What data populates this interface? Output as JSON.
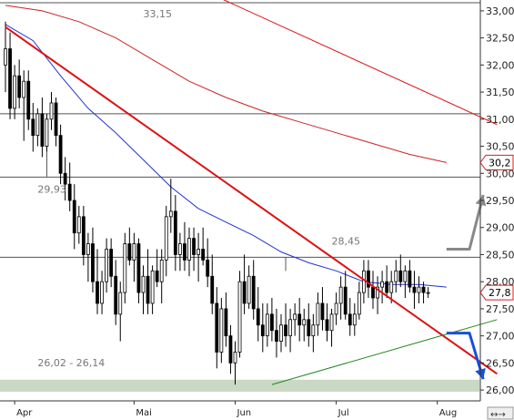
{
  "colors": {
    "background": "#ffffff",
    "candle": "#000000",
    "level_line": "#555555",
    "trendline": "#dd1111",
    "support_line": "#228822",
    "blue_ma": "#2233cc",
    "red_ma": "#cc2222",
    "support_zone": "#c9d9c4",
    "gray_arrow": "#888888",
    "blue_arrow": "#1a4fd8",
    "price_tag": "#cc2222"
  },
  "icons": {
    "gray_arrow": "up-arrow-icon",
    "blue_arrow": "down-arrow-icon",
    "scroll_buttons": "scroll-arrows-icon"
  },
  "chart_data": {
    "type": "candlestick",
    "title": "",
    "xlabel": "",
    "ylabel": "",
    "ylim": [
      25.8,
      33.2
    ],
    "y_ticks": [
      "33,00",
      "32,50",
      "32,00",
      "31,50",
      "31,00",
      "30,50",
      "30,00",
      "29,50",
      "29,00",
      "28,50",
      "28,00",
      "27,50",
      "27,00",
      "26,50",
      "26,00"
    ],
    "y_tick_values": [
      33.0,
      32.5,
      32.0,
      31.5,
      31.0,
      30.5,
      30.0,
      29.5,
      29.0,
      28.5,
      28.0,
      27.5,
      27.0,
      26.5,
      26.0
    ],
    "months": [
      {
        "label": "Apr",
        "index": 2
      },
      {
        "label": "Mai",
        "index": 28
      },
      {
        "label": "Jun",
        "index": 50
      },
      {
        "label": "Jul",
        "index": 72
      },
      {
        "label": "Aug",
        "index": 94
      }
    ],
    "horizontal_levels": [
      {
        "label": "33,15",
        "value": 33.15
      },
      {
        "label": "",
        "value": 31.1
      },
      {
        "label": "29,93",
        "value": 29.93
      },
      {
        "label": "28,45",
        "value": 28.45
      }
    ],
    "support_zone": {
      "label": "26,02 - 26,14",
      "from": 26.02,
      "to": 26.14
    },
    "last_price_tags": [
      "30,2",
      "27,8"
    ],
    "last_price_values": [
      30.2,
      27.8
    ],
    "trendlines": [
      {
        "name": "downtrend",
        "points": [
          [
            0,
            32.7
          ],
          [
            107,
            26.3
          ]
        ]
      },
      {
        "name": "uptrend",
        "points": [
          [
            58,
            26.1
          ],
          [
            107,
            27.3
          ]
        ]
      },
      {
        "name": "upper-red",
        "points": [
          [
            45,
            33.3
          ],
          [
            107,
            30.9
          ]
        ]
      }
    ],
    "moving_averages": [
      {
        "name": "blue",
        "points": [
          [
            0,
            32.75
          ],
          [
            6,
            32.45
          ],
          [
            12,
            31.8
          ],
          [
            18,
            31.2
          ],
          [
            24,
            30.75
          ],
          [
            30,
            30.25
          ],
          [
            36,
            29.75
          ],
          [
            42,
            29.35
          ],
          [
            48,
            29.1
          ],
          [
            54,
            28.85
          ],
          [
            60,
            28.55
          ],
          [
            66,
            28.35
          ],
          [
            72,
            28.2
          ],
          [
            78,
            28.0
          ],
          [
            84,
            27.95
          ],
          [
            90,
            27.95
          ],
          [
            96,
            27.9
          ]
        ]
      },
      {
        "name": "red",
        "points": [
          [
            0,
            33.1
          ],
          [
            8,
            33.0
          ],
          [
            16,
            32.8
          ],
          [
            24,
            32.5
          ],
          [
            32,
            32.1
          ],
          [
            40,
            31.7
          ],
          [
            48,
            31.4
          ],
          [
            56,
            31.15
          ],
          [
            64,
            30.95
          ],
          [
            72,
            30.75
          ],
          [
            80,
            30.55
          ],
          [
            88,
            30.35
          ],
          [
            96,
            30.2
          ]
        ]
      }
    ],
    "arrows": [
      {
        "name": "gray-arrow",
        "points": [
          [
            96,
            28.6
          ],
          [
            101,
            28.6
          ],
          [
            104,
            29.6
          ]
        ]
      },
      {
        "name": "blue-arrow",
        "points": [
          [
            96,
            27.05
          ],
          [
            101,
            27.05
          ],
          [
            104,
            26.2
          ]
        ]
      }
    ],
    "candles": [
      [
        32.0,
        32.8,
        31.5,
        32.3
      ],
      [
        32.3,
        32.6,
        31.0,
        31.2
      ],
      [
        31.2,
        32.0,
        31.0,
        31.8
      ],
      [
        31.8,
        32.1,
        31.2,
        31.4
      ],
      [
        31.4,
        31.9,
        30.6,
        31.7
      ],
      [
        31.7,
        31.9,
        30.8,
        31.0
      ],
      [
        31.0,
        31.3,
        30.4,
        30.7
      ],
      [
        30.7,
        31.2,
        30.5,
        31.1
      ],
      [
        31.1,
        31.4,
        30.3,
        30.5
      ],
      [
        30.5,
        31.1,
        30.4,
        31.0
      ],
      [
        31.0,
        31.5,
        30.8,
        31.3
      ],
      [
        31.3,
        31.4,
        30.5,
        30.7
      ],
      [
        30.7,
        30.9,
        29.8,
        30.0
      ],
      [
        30.0,
        30.3,
        29.5,
        29.8
      ],
      [
        29.8,
        30.2,
        29.3,
        29.5
      ],
      [
        29.5,
        29.8,
        28.6,
        28.9
      ],
      [
        28.9,
        29.4,
        28.7,
        29.2
      ],
      [
        29.2,
        29.4,
        28.3,
        28.5
      ],
      [
        28.5,
        28.9,
        28.0,
        28.7
      ],
      [
        28.7,
        29.0,
        27.8,
        28.0
      ],
      [
        28.0,
        28.6,
        27.4,
        27.6
      ],
      [
        27.6,
        28.2,
        27.4,
        28.0
      ],
      [
        28.0,
        28.8,
        27.8,
        28.6
      ],
      [
        28.6,
        28.8,
        27.9,
        28.1
      ],
      [
        28.1,
        28.4,
        27.2,
        27.4
      ],
      [
        27.4,
        28.0,
        26.9,
        27.8
      ],
      [
        27.8,
        28.9,
        27.6,
        28.7
      ],
      [
        28.7,
        29.0,
        28.3,
        28.4
      ],
      [
        28.4,
        28.9,
        28.0,
        28.7
      ],
      [
        28.7,
        28.8,
        27.6,
        27.8
      ],
      [
        27.8,
        28.3,
        27.4,
        28.1
      ],
      [
        28.1,
        28.6,
        27.4,
        27.6
      ],
      [
        27.6,
        28.3,
        27.4,
        28.2
      ],
      [
        28.2,
        28.6,
        27.9,
        28.0
      ],
      [
        28.0,
        28.6,
        27.6,
        28.4
      ],
      [
        28.4,
        29.4,
        28.1,
        29.2
      ],
      [
        29.2,
        29.9,
        28.9,
        29.3
      ],
      [
        29.3,
        29.6,
        28.2,
        28.5
      ],
      [
        28.5,
        28.9,
        28.2,
        28.7
      ],
      [
        28.7,
        29.1,
        28.2,
        28.4
      ],
      [
        28.4,
        29.0,
        28.1,
        28.8
      ],
      [
        28.8,
        29.0,
        28.2,
        28.5
      ],
      [
        28.5,
        28.9,
        28.0,
        28.6
      ],
      [
        28.6,
        29.0,
        28.3,
        28.4
      ],
      [
        28.4,
        28.8,
        27.9,
        28.1
      ],
      [
        28.1,
        28.5,
        27.4,
        27.6
      ],
      [
        27.6,
        27.9,
        26.4,
        26.7
      ],
      [
        26.7,
        27.7,
        26.5,
        27.5
      ],
      [
        27.5,
        27.8,
        26.8,
        27.0
      ],
      [
        27.0,
        27.2,
        26.3,
        26.5
      ],
      [
        26.5,
        26.9,
        26.1,
        26.7
      ],
      [
        26.7,
        28.2,
        26.6,
        28.0
      ],
      [
        28.0,
        28.5,
        27.4,
        27.6
      ],
      [
        27.6,
        28.3,
        27.5,
        28.1
      ],
      [
        28.1,
        28.4,
        27.3,
        27.5
      ],
      [
        27.5,
        27.9,
        26.9,
        27.2
      ],
      [
        27.2,
        27.6,
        26.7,
        27.0
      ],
      [
        27.0,
        27.6,
        26.8,
        27.4
      ],
      [
        27.4,
        27.7,
        26.9,
        27.1
      ],
      [
        27.1,
        27.5,
        26.6,
        26.9
      ],
      [
        26.9,
        27.4,
        26.7,
        27.2
      ],
      [
        27.2,
        27.6,
        26.8,
        27.0
      ],
      [
        27.0,
        27.5,
        26.7,
        27.3
      ],
      [
        27.3,
        27.6,
        27.0,
        27.4
      ],
      [
        27.4,
        27.7,
        26.9,
        27.2
      ],
      [
        27.2,
        27.5,
        26.9,
        27.3
      ],
      [
        27.3,
        27.6,
        26.8,
        27.0
      ],
      [
        27.0,
        27.4,
        26.7,
        27.2
      ],
      [
        27.2,
        27.8,
        27.0,
        27.6
      ],
      [
        27.6,
        27.9,
        27.1,
        27.3
      ],
      [
        27.3,
        27.6,
        26.9,
        27.1
      ],
      [
        27.1,
        27.5,
        26.8,
        27.4
      ],
      [
        27.4,
        27.8,
        27.2,
        27.6
      ],
      [
        27.6,
        28.1,
        27.3,
        27.9
      ],
      [
        27.9,
        28.2,
        27.3,
        27.4
      ],
      [
        27.4,
        27.7,
        27.0,
        27.2
      ],
      [
        27.2,
        27.6,
        27.0,
        27.4
      ],
      [
        27.4,
        28.0,
        27.3,
        27.8
      ],
      [
        27.8,
        28.4,
        27.6,
        28.2
      ],
      [
        28.2,
        28.4,
        27.7,
        27.9
      ],
      [
        27.9,
        28.2,
        27.5,
        27.7
      ],
      [
        27.7,
        28.1,
        27.4,
        27.9
      ],
      [
        27.9,
        28.2,
        27.6,
        28.0
      ],
      [
        28.0,
        28.3,
        27.7,
        27.8
      ],
      [
        27.8,
        28.2,
        27.6,
        28.0
      ],
      [
        28.0,
        28.4,
        27.8,
        28.2
      ],
      [
        28.2,
        28.5,
        27.9,
        28.0
      ],
      [
        28.0,
        28.3,
        27.7,
        28.2
      ],
      [
        28.2,
        28.4,
        27.8,
        27.9
      ],
      [
        27.9,
        28.2,
        27.5,
        27.8
      ],
      [
        27.8,
        28.1,
        27.6,
        27.9
      ],
      [
        27.9,
        28.0,
        27.6,
        27.8
      ],
      [
        27.8,
        27.9,
        27.7,
        27.8
      ]
    ]
  }
}
